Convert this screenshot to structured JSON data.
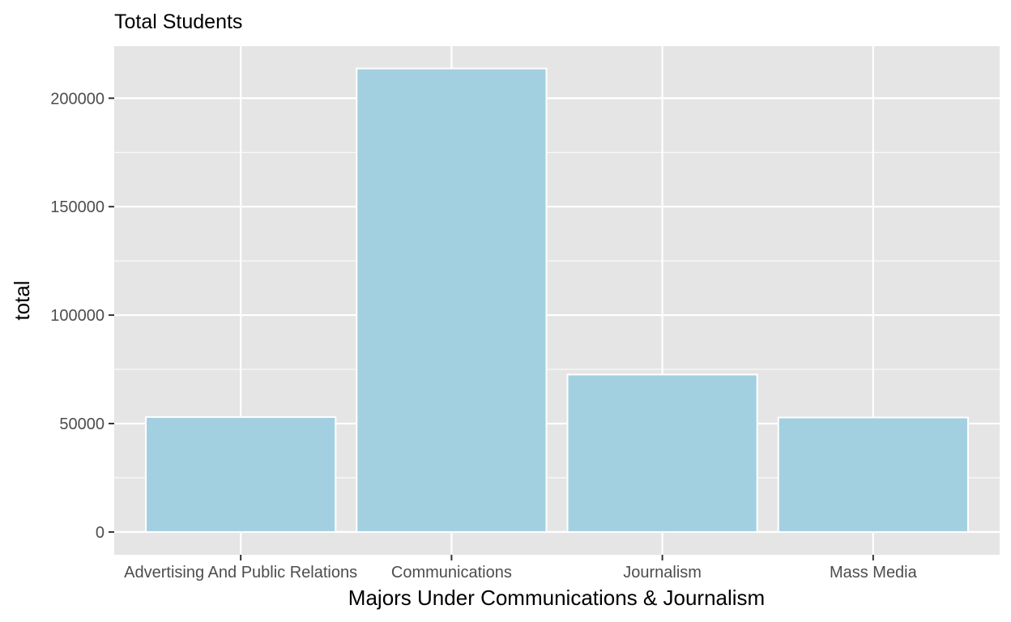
{
  "chart_data": {
    "type": "bar",
    "title": "Total Students",
    "xlabel": "Majors Under Communications & Journalism",
    "ylabel": "total",
    "categories": [
      "Advertising And Public Relations",
      "Communications",
      "Journalism",
      "Mass Media"
    ],
    "values": [
      53000,
      213700,
      72600,
      52800
    ],
    "ylim": [
      -10500,
      224000
    ],
    "yticks": [
      "0",
      "50000",
      "100000",
      "150000",
      "200000"
    ],
    "grid": true,
    "legend": "none",
    "colors": {
      "bar_fill": "#a2d0e1",
      "bar_stroke": "#ffffff",
      "panel_background": "#e5e5e5",
      "grid": "#ffffff",
      "tick_text": "#4d4d4d",
      "tick_mark": "#333333"
    }
  }
}
